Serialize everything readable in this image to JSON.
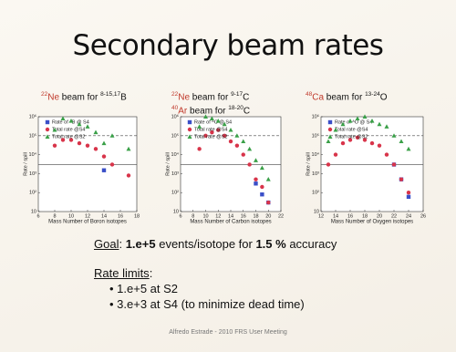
{
  "slide": {
    "title": "Secondary beam rates",
    "captions": [
      [
        {
          "mass": "22",
          "element": "Ne",
          "text": " beam for ",
          "range": "8-15,17",
          "target": "B"
        }
      ],
      [
        {
          "mass": "22",
          "element": "Ne",
          "text": " beam for ",
          "range": "9-17",
          "target": "C"
        },
        {
          "mass": "40",
          "element": "Ar",
          "text": " beam for ",
          "range": "18-20",
          "target": "C"
        }
      ],
      [
        {
          "mass": "48",
          "element": "Ca",
          "text": " beam for ",
          "range": "13-24",
          "target": "O"
        }
      ]
    ],
    "goal": {
      "label": "Goal",
      "parts": [
        ": ",
        "1.e+5",
        " events/isotope for ",
        "1.5 %",
        " accuracy"
      ]
    },
    "limits": {
      "label": "Rate limits",
      "colon": ":",
      "bullets": [
        "1.e+5 at S2",
        "3.e+3 at S4 (to minimize dead time)"
      ]
    },
    "footer": "Alfredo Estrade - 2010 FRS User Meeting"
  },
  "chart_data": [
    {
      "type": "scatter",
      "xlabel": "Mass Number of Boron isotopes",
      "ylabel": "Rate / spill",
      "log_y": true,
      "xlim": [
        6,
        18
      ],
      "xticks": [
        6,
        8,
        10,
        12,
        14,
        16,
        18
      ],
      "ylim": [
        10,
        1000000
      ],
      "yticks": [
        10,
        {
          "value": 100,
          "label": "10²"
        },
        {
          "value": 1000,
          "label": "10³"
        },
        {
          "value": 10000,
          "label": "10⁴"
        },
        {
          "value": 100000,
          "label": "10⁵"
        },
        {
          "value": 1000000,
          "label": "10⁶"
        }
      ],
      "hlines": [
        {
          "value": 100000,
          "style": "dashed"
        },
        {
          "value": 3000,
          "style": "solid"
        }
      ],
      "series": [
        {
          "name": "Rate of ᴬB @ S4",
          "color": "#3a4fc8",
          "marker": "square",
          "x": [
            14
          ],
          "values": [
            1500
          ]
        },
        {
          "name": "Total rate @S4",
          "color": "#d8344a",
          "marker": "circle",
          "x": [
            8,
            9,
            10,
            11,
            12,
            13,
            14,
            15,
            17
          ],
          "values": [
            30000,
            60000,
            60000,
            40000,
            30000,
            20000,
            8000,
            3000,
            800
          ]
        },
        {
          "name": "Total rate @S2",
          "color": "#3aa048",
          "marker": "triangle",
          "x": [
            8,
            9,
            10,
            11,
            12,
            13,
            14,
            15,
            17
          ],
          "values": [
            200000,
            800000,
            600000,
            400000,
            300000,
            150000,
            40000,
            100000,
            20000
          ]
        }
      ]
    },
    {
      "type": "scatter",
      "xlabel": "Mass Number of Carbon isotopes",
      "ylabel": "Rate / spill",
      "log_y": true,
      "xlim": [
        6,
        22
      ],
      "xticks": [
        6,
        8,
        10,
        12,
        14,
        16,
        18,
        20,
        22
      ],
      "ylim": [
        10,
        1000000
      ],
      "yticks": [
        10,
        {
          "value": 100,
          "label": "10²"
        },
        {
          "value": 1000,
          "label": "10³"
        },
        {
          "value": 10000,
          "label": "10⁴"
        },
        {
          "value": 100000,
          "label": "10⁵"
        },
        {
          "value": 1000000,
          "label": "10⁶"
        }
      ],
      "hlines": [
        {
          "value": 100000,
          "style": "dashed"
        },
        {
          "value": 3000,
          "style": "solid"
        }
      ],
      "series": [
        {
          "name": "Rate of ᴬC @ S4",
          "color": "#3a4fc8",
          "marker": "square",
          "x": [
            18,
            19,
            20
          ],
          "values": [
            300,
            80,
            30
          ]
        },
        {
          "name": "Total rate @S4",
          "color": "#d8344a",
          "marker": "circle",
          "x": [
            9,
            10,
            11,
            12,
            13,
            14,
            15,
            16,
            17,
            18,
            19,
            20
          ],
          "values": [
            20000,
            100000,
            150000,
            200000,
            100000,
            50000,
            30000,
            10000,
            3000,
            500,
            200,
            30
          ]
        },
        {
          "name": "Total rate @S2",
          "color": "#3aa048",
          "marker": "triangle",
          "x": [
            9,
            10,
            11,
            12,
            13,
            14,
            15,
            16,
            17,
            18,
            19,
            20
          ],
          "values": [
            300000,
            1000000,
            800000,
            600000,
            400000,
            200000,
            100000,
            50000,
            20000,
            5000,
            2000,
            500
          ]
        }
      ]
    },
    {
      "type": "scatter",
      "xlabel": "Mass Number of Oxygen isotopes",
      "ylabel": "Rate / spill",
      "log_y": true,
      "xlim": [
        12,
        26
      ],
      "xticks": [
        12,
        14,
        16,
        18,
        20,
        22,
        24,
        26
      ],
      "ylim": [
        10,
        1000000
      ],
      "yticks": [
        10,
        {
          "value": 100,
          "label": "10²"
        },
        {
          "value": 1000,
          "label": "10³"
        },
        {
          "value": 10000,
          "label": "10⁴"
        },
        {
          "value": 100000,
          "label": "10⁵"
        },
        {
          "value": 1000000,
          "label": "10⁶"
        }
      ],
      "hlines": [
        {
          "value": 100000,
          "style": "dashed"
        },
        {
          "value": 3000,
          "style": "solid"
        }
      ],
      "series": [
        {
          "name": "Rate of ᴬO @ S4",
          "color": "#3a4fc8",
          "marker": "square",
          "x": [
            22,
            23,
            24
          ],
          "values": [
            3000,
            500,
            60
          ]
        },
        {
          "name": "Total rate @S4",
          "color": "#d8344a",
          "marker": "circle",
          "x": [
            13,
            14,
            15,
            16,
            17,
            18,
            19,
            20,
            21,
            22,
            23,
            24
          ],
          "values": [
            3000,
            10000,
            40000,
            60000,
            80000,
            60000,
            40000,
            30000,
            10000,
            3000,
            500,
            100
          ]
        },
        {
          "name": "Total rate @S2",
          "color": "#3aa048",
          "marker": "triangle",
          "x": [
            13,
            14,
            15,
            16,
            17,
            18,
            19,
            20,
            21,
            22,
            23,
            24
          ],
          "values": [
            50000,
            200000,
            400000,
            600000,
            800000,
            1000000,
            600000,
            400000,
            300000,
            100000,
            50000,
            20000
          ]
        }
      ]
    }
  ]
}
